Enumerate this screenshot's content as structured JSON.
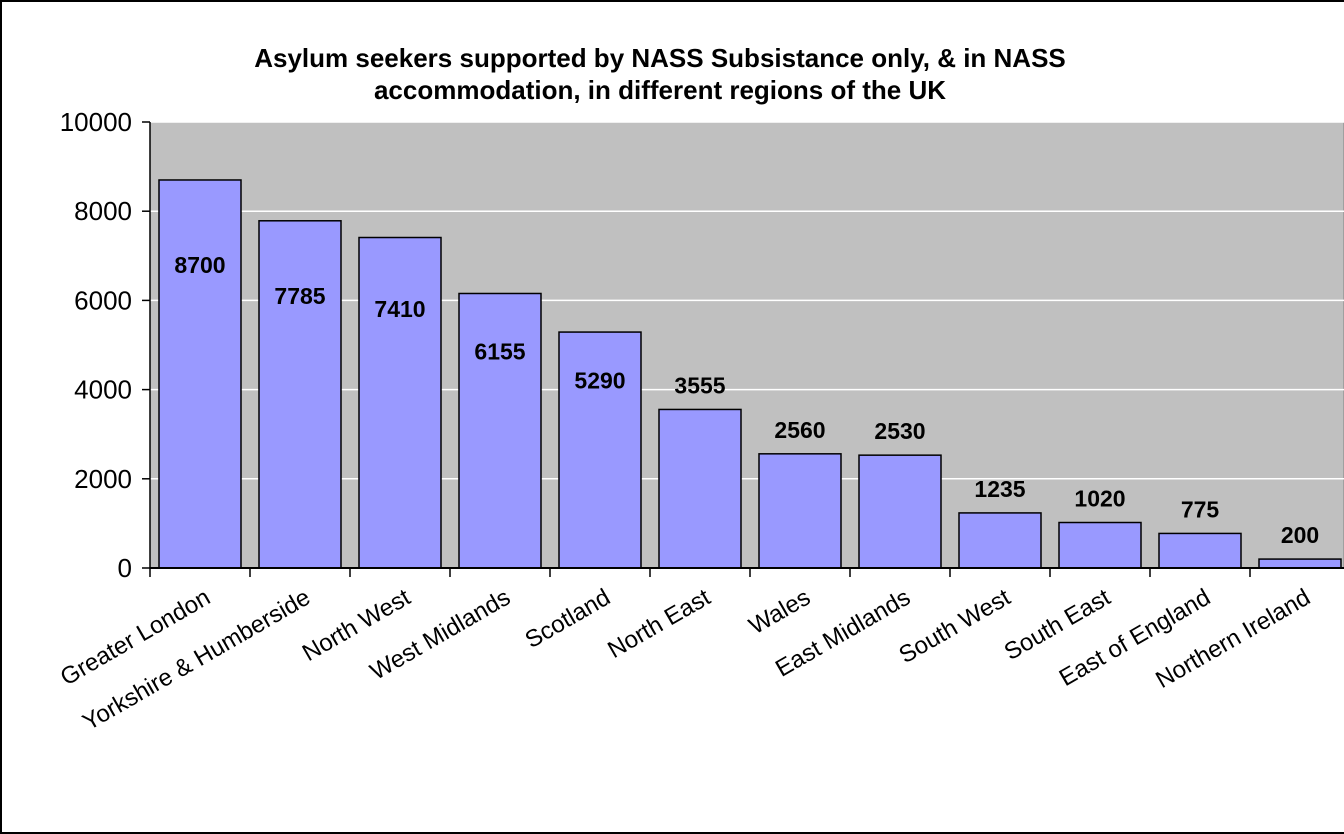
{
  "chart_data": {
    "type": "bar",
    "title_lines": [
      "Asylum seekers supported by NASS Subsistance only, & in NASS",
      "accommodation, in different regions of the UK"
    ],
    "categories": [
      "Greater London",
      "Yorkshire & Humberside",
      "North West",
      "West Midlands",
      "Scotland",
      "North East",
      "Wales",
      "East Midlands",
      "South West",
      "South East",
      "East of England",
      "Northern Ireland"
    ],
    "values": [
      8700,
      7785,
      7410,
      6155,
      5290,
      3555,
      2560,
      2530,
      1235,
      1020,
      775,
      200
    ],
    "data_labels": [
      "8700",
      "7785",
      "7410",
      "6155",
      "5290",
      "3555",
      "2560",
      "2530",
      "1235",
      "1020",
      "775",
      "200"
    ],
    "xlabel": "",
    "ylabel": "",
    "ylim": [
      0,
      10000
    ],
    "yticks": [
      "0",
      "2000",
      "4000",
      "6000",
      "8000",
      "10000"
    ],
    "grid": true,
    "legend": "none",
    "colors": {
      "bar_fill": "#9999ff",
      "bar_stroke": "#000000",
      "plot_background": "#c0c0c0",
      "gridline": "#ffffff"
    }
  }
}
